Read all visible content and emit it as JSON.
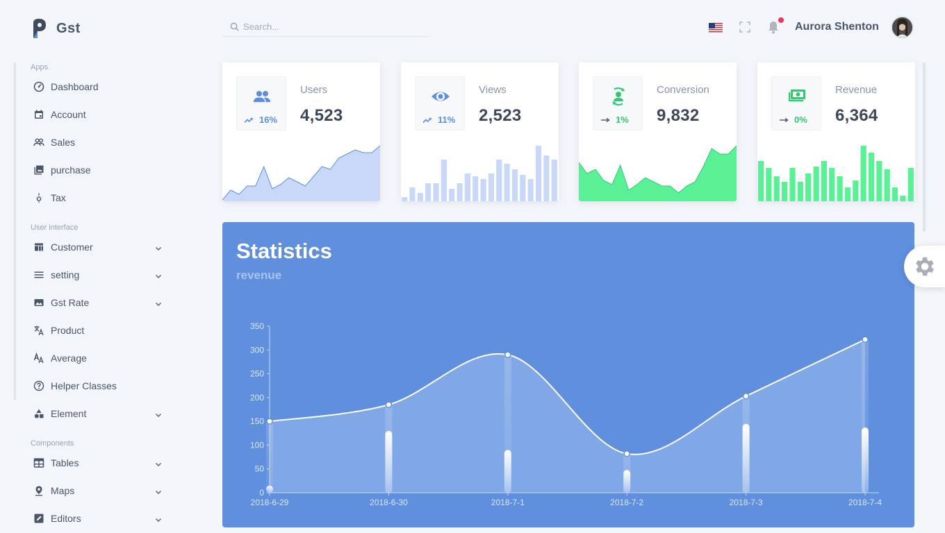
{
  "app": {
    "title": "Gst"
  },
  "search": {
    "placeholder": "Search..."
  },
  "header": {
    "user_name": "Aurora Shenton"
  },
  "sidebar": {
    "sections": [
      {
        "title": "Apps",
        "items": [
          {
            "label": "Dashboard",
            "icon": "dashboard-icon",
            "expandable": false
          },
          {
            "label": "Account",
            "icon": "calendar-icon",
            "expandable": false
          },
          {
            "label": "Sales",
            "icon": "people-icon",
            "expandable": false
          },
          {
            "label": "purchase",
            "icon": "image-icon",
            "expandable": false
          },
          {
            "label": "Tax",
            "icon": "bulb-icon",
            "expandable": false
          }
        ]
      },
      {
        "title": "User interface",
        "items": [
          {
            "label": "Customer",
            "icon": "dashboard-grid-icon",
            "expandable": true
          },
          {
            "label": "setting",
            "icon": "menu-icon",
            "expandable": true
          },
          {
            "label": "Gst Rate",
            "icon": "photo-icon",
            "expandable": true
          },
          {
            "label": "Product",
            "icon": "translate-icon",
            "expandable": false
          },
          {
            "label": "Average",
            "icon": "text-format-icon",
            "expandable": false
          },
          {
            "label": "Helper Classes",
            "icon": "help-icon",
            "expandable": false
          },
          {
            "label": "Element",
            "icon": "shapes-icon",
            "expandable": true
          }
        ]
      },
      {
        "title": "Components",
        "items": [
          {
            "label": "Tables",
            "icon": "table-icon",
            "expandable": true
          },
          {
            "label": "Maps",
            "icon": "map-pin-icon",
            "expandable": true
          },
          {
            "label": "Editors",
            "icon": "edit-icon",
            "expandable": true
          }
        ]
      }
    ]
  },
  "cards": [
    {
      "title": "Users",
      "value": "4,523",
      "trend": "16%",
      "trend_dir": "up",
      "icon": "users-icon",
      "color": "#5d8ee0",
      "trend_color": "#5d8ee0",
      "spark_type": "area",
      "spark_color": "#c9d8f8",
      "spark_line": "#5d8ee0",
      "spark": [
        2,
        16,
        10,
        22,
        22,
        50,
        18,
        24,
        34,
        28,
        22,
        36,
        50,
        46,
        62,
        68,
        74,
        70,
        70,
        80
      ]
    },
    {
      "title": "Views",
      "value": "2,523",
      "trend": "11%",
      "trend_dir": "up",
      "icon": "eye-icon",
      "color": "#5d8ee0",
      "trend_color": "#5d8ee0",
      "spark_type": "bar",
      "spark_color": "#c9d8f8",
      "spark": [
        6,
        20,
        12,
        26,
        26,
        60,
        18,
        26,
        40,
        36,
        32,
        40,
        60,
        54,
        46,
        38,
        32,
        80,
        66,
        60
      ]
    },
    {
      "title": "Conversion",
      "value": "9,832",
      "trend": "1%",
      "trend_dir": "flat",
      "icon": "conversion-icon",
      "color": "#2ecc71",
      "trend_color": "#2ecc71",
      "spark_type": "area",
      "spark_color": "#59f096",
      "spark_line": "#2ecc71",
      "spark": [
        56,
        40,
        46,
        30,
        24,
        52,
        16,
        24,
        34,
        28,
        22,
        22,
        12,
        22,
        28,
        50,
        76,
        68,
        68,
        80
      ]
    },
    {
      "title": "Revenue",
      "value": "6,364",
      "trend": "0%",
      "trend_dir": "flat",
      "icon": "money-icon",
      "color": "#2ecc71",
      "trend_color": "#2ecc71",
      "spark_type": "bar",
      "spark_color": "#59f096",
      "spark": [
        58,
        48,
        36,
        28,
        48,
        28,
        40,
        50,
        58,
        48,
        36,
        20,
        30,
        80,
        70,
        58,
        46,
        20,
        8,
        48
      ]
    }
  ],
  "statistics": {
    "title": "Statistics",
    "subtitle": "revenue"
  },
  "chart_data": {
    "type": "line",
    "x": [
      "2018-6-29",
      "2018-6-30",
      "2018-7-1",
      "2018-7-2",
      "2018-7-3",
      "2018-7-4"
    ],
    "series": [
      {
        "type": "line",
        "values": [
          150,
          185,
          290,
          82,
          203,
          322
        ]
      },
      {
        "type": "bar",
        "values": [
          15,
          130,
          90,
          48,
          145,
          137
        ]
      }
    ],
    "ylim": [
      0,
      350
    ],
    "yticks": [
      0,
      50,
      100,
      150,
      200,
      250,
      300,
      350
    ],
    "grid": false,
    "colors": {
      "background": "#5f8fdd",
      "line": "#ffffff",
      "area": "#8fb0ea",
      "axis": "#c9d9f4"
    }
  }
}
